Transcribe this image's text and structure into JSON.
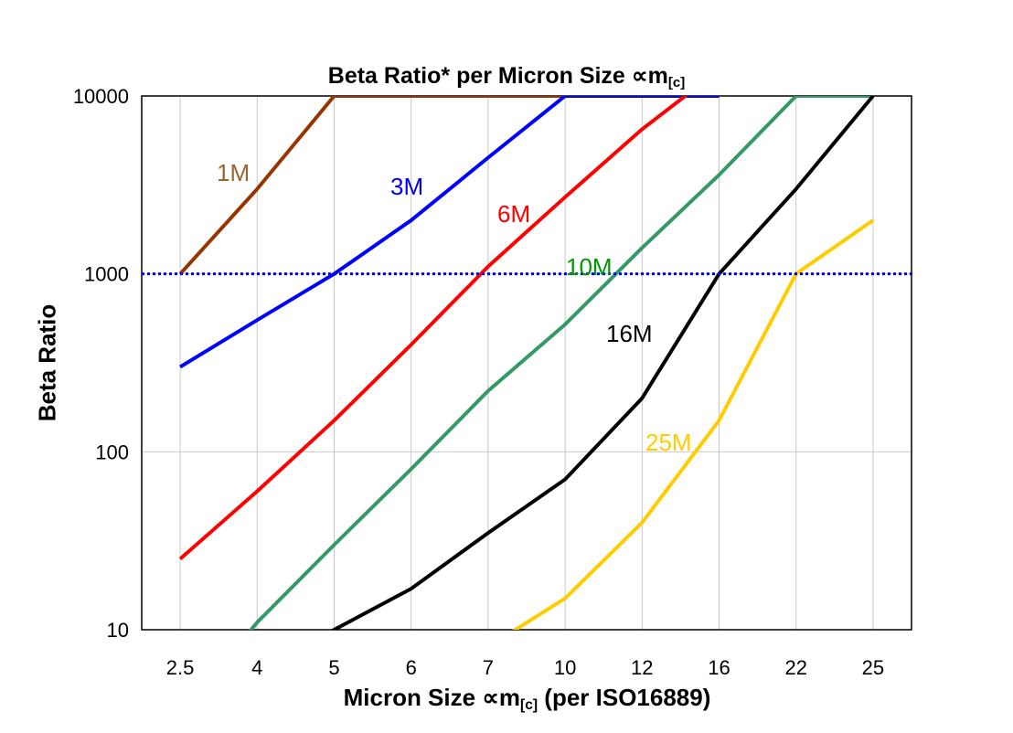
{
  "chart_data": {
    "type": "line",
    "title": "Beta Ratio* per Micron Size ∝m",
    "title_sub": "[c]",
    "xlabel": "Micron Size ∝m",
    "xlabel_sub": "[c]",
    "xlabel_suffix": " (per ISO16889)",
    "ylabel": "Beta Ratio",
    "categories": [
      "2.5",
      "4",
      "5",
      "6",
      "7",
      "10",
      "12",
      "16",
      "22",
      "25"
    ],
    "y_scale": "log",
    "ylim": [
      10,
      10000
    ],
    "yticks": [
      "10",
      "100",
      "1000",
      "10000"
    ],
    "grid": true,
    "reference_line": {
      "y": 1000,
      "style": "dotted",
      "color": "#0000FF"
    },
    "series": [
      {
        "name": "1M",
        "color": "#993300",
        "label_color": "#996633",
        "values": [
          1000,
          3000,
          10000,
          10000,
          10000,
          10000,
          null,
          null,
          null,
          null
        ]
      },
      {
        "name": "3M",
        "color": "#0000FF",
        "label_color": "#0000FF",
        "values": [
          300,
          550,
          1000,
          2000,
          4500,
          10000,
          10000,
          10000,
          null,
          null
        ]
      },
      {
        "name": "6M",
        "color": "#FF0000",
        "label_color": "#FF0000",
        "values": [
          25,
          60,
          150,
          400,
          1100,
          2700,
          6500,
          14000,
          null,
          null
        ]
      },
      {
        "name": "10M",
        "color": "#339966",
        "label_color": "#009900",
        "values": [
          3.3,
          11,
          30,
          80,
          220,
          520,
          1400,
          3600,
          10000,
          10000
        ]
      },
      {
        "name": "16M",
        "color": "#000000",
        "label_color": "#000000",
        "values": [
          null,
          6,
          10,
          17,
          35,
          70,
          200,
          1000,
          3000,
          10000
        ]
      },
      {
        "name": "25M",
        "color": "#FFCC00",
        "label_color": "#FFCC00",
        "values": [
          null,
          null,
          null,
          null,
          8,
          15,
          40,
          150,
          1000,
          2000
        ]
      }
    ]
  }
}
